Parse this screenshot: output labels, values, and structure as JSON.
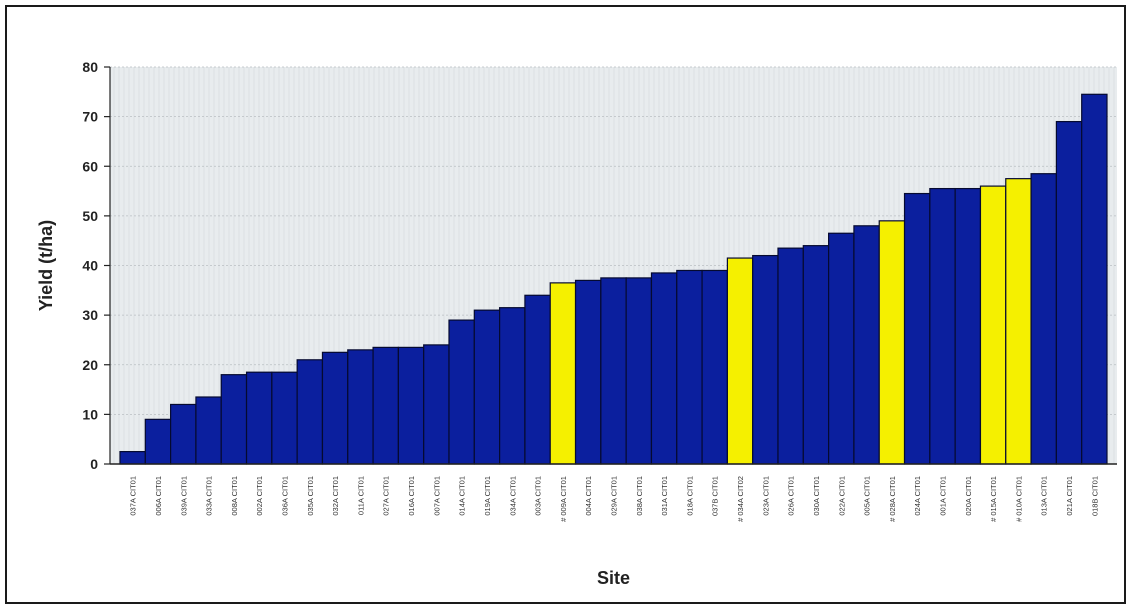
{
  "chart_data": {
    "type": "bar",
    "title": "",
    "xlabel": "Site",
    "ylabel": "Yield (t/ha)",
    "ylim": [
      0,
      80
    ],
    "yticks": [
      0,
      10,
      20,
      30,
      40,
      50,
      60,
      70,
      80
    ],
    "grid": true,
    "legend": "none",
    "colors": {
      "default_bar": "#0b1f9e",
      "highlight_bar": "#f5f000",
      "plot_background": "#e8ecee"
    },
    "categories": [
      "037A CIT01",
      "006A CIT01",
      "039A CIT01",
      "033A CIT01",
      "008A CIT01",
      "002A CIT01",
      "036A CIT01",
      "035A CIT01",
      "032A CIT01",
      "011A CIT01",
      "027A CIT01",
      "016A CIT01",
      "007A CIT01",
      "014A CIT01",
      "019A CIT01",
      "034A CIT01",
      "003A CIT01",
      "# 009A CIT01",
      "004A CIT01",
      "029A CIT01",
      "038A CIT01",
      "031A CIT01",
      "018A CIT01",
      "037B CIT01",
      "# 034A CIT02",
      "023A CIT01",
      "026A CIT01",
      "030A CIT01",
      "022A CIT01",
      "005A CIT01",
      "# 028A CIT01",
      "024A CIT01",
      "001A CIT01",
      "020A CIT01",
      "# 015A CIT01",
      "# 010A CIT01",
      "013A CIT01",
      "021A CIT01",
      "018B CIT01"
    ],
    "values": [
      2.5,
      9,
      12,
      13.5,
      18,
      18.5,
      18.5,
      21,
      22.5,
      23,
      23.5,
      23.5,
      24,
      29,
      31,
      31.5,
      34,
      36.5,
      37,
      37.5,
      37.5,
      38.5,
      39,
      39,
      41.5,
      42,
      43.5,
      44,
      46.5,
      48,
      49,
      54.5,
      55.5,
      55.5,
      56,
      57.5,
      58.5,
      69,
      74.5
    ],
    "highlighted": [
      false,
      false,
      false,
      false,
      false,
      false,
      false,
      false,
      false,
      false,
      false,
      false,
      false,
      false,
      false,
      false,
      false,
      true,
      false,
      false,
      false,
      false,
      false,
      false,
      true,
      false,
      false,
      false,
      false,
      false,
      true,
      false,
      false,
      false,
      true,
      true,
      false,
      false,
      false
    ]
  }
}
